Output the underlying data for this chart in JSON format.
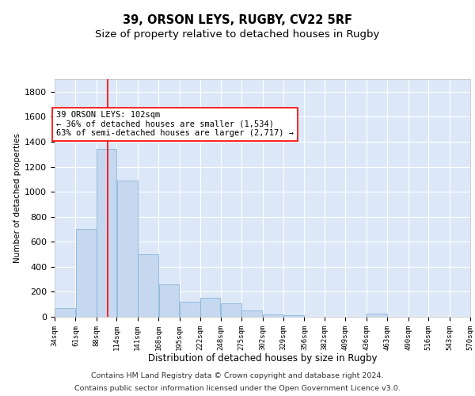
{
  "title1": "39, ORSON LEYS, RUGBY, CV22 5RF",
  "title2": "Size of property relative to detached houses in Rugby",
  "xlabel": "Distribution of detached houses by size in Rugby",
  "ylabel": "Number of detached properties",
  "bar_color": "#c5d8f0",
  "bar_edge_color": "#7aadd4",
  "background_color": "#dce8f8",
  "grid_color": "#ffffff",
  "annotation_line1": "39 ORSON LEYS: 102sqm",
  "annotation_line2": "← 36% of detached houses are smaller (1,534)",
  "annotation_line3": "63% of semi-detached houses are larger (2,717) →",
  "red_line_x": 102,
  "bins": [
    34,
    61,
    88,
    114,
    141,
    168,
    195,
    222,
    248,
    275,
    302,
    329,
    356,
    382,
    409,
    436,
    463,
    490,
    516,
    543,
    570
  ],
  "values": [
    70,
    700,
    1340,
    1090,
    500,
    260,
    120,
    150,
    110,
    50,
    20,
    10,
    0,
    0,
    0,
    25,
    0,
    0,
    0,
    0
  ],
  "ylim": [
    0,
    1900
  ],
  "yticks": [
    0,
    200,
    400,
    600,
    800,
    1000,
    1200,
    1400,
    1600,
    1800
  ],
  "footnote1": "Contains HM Land Registry data © Crown copyright and database right 2024.",
  "footnote2": "Contains public sector information licensed under the Open Government Licence v3.0.",
  "title1_fontsize": 10.5,
  "title2_fontsize": 9.5,
  "tick_fontsize": 6.5,
  "ytick_fontsize": 8,
  "xlabel_fontsize": 8.5,
  "ylabel_fontsize": 7.5,
  "annot_fontsize": 7.5,
  "footer_fontsize": 6.8
}
